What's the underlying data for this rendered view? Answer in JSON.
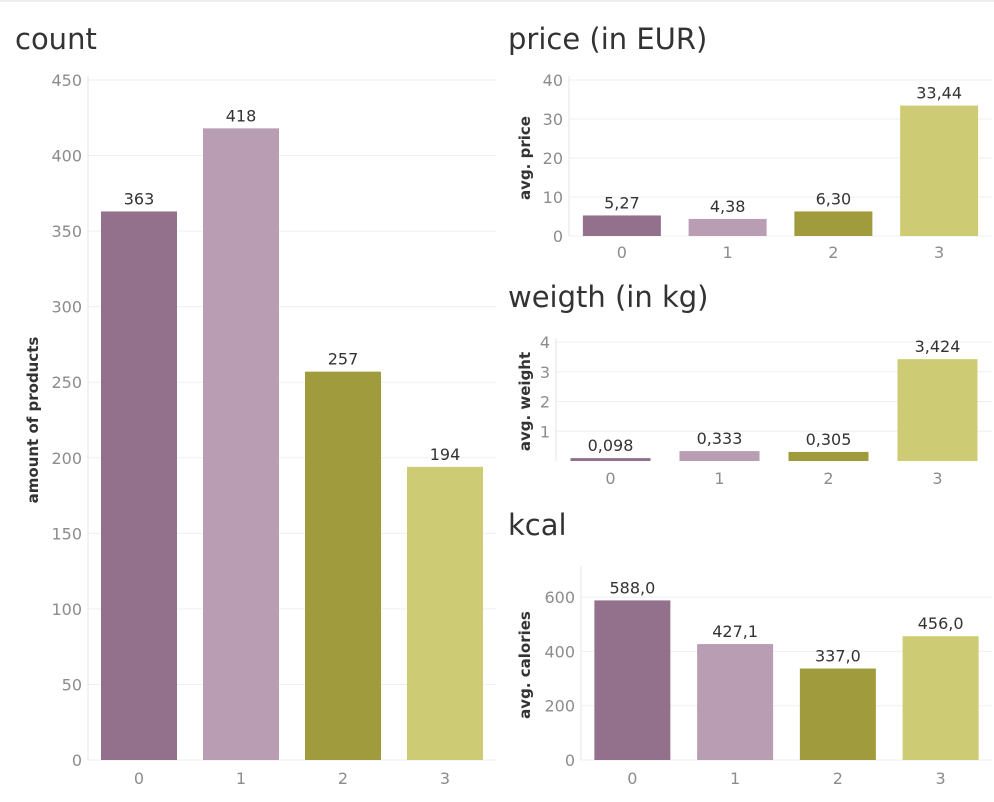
{
  "colors": [
    "#93718d",
    "#b89db3",
    "#a09b3c",
    "#cdcb74"
  ],
  "chart_data": [
    {
      "id": "count",
      "type": "bar",
      "title": "count",
      "xlabel": "",
      "ylabel": "amount of products",
      "categories": [
        "0",
        "1",
        "2",
        "3"
      ],
      "values": [
        363,
        418,
        257,
        194
      ],
      "value_labels": [
        "363",
        "418",
        "257",
        "194"
      ],
      "ylim": [
        0,
        450
      ],
      "yticks": [
        0,
        50,
        100,
        150,
        200,
        250,
        300,
        350,
        400,
        450
      ],
      "grid": true
    },
    {
      "id": "price",
      "type": "bar",
      "title": "price (in EUR)",
      "xlabel": "",
      "ylabel": "avg. price",
      "categories": [
        "0",
        "1",
        "2",
        "3"
      ],
      "values": [
        5.27,
        4.38,
        6.3,
        33.44
      ],
      "value_labels": [
        "5,27",
        "4,38",
        "6,30",
        "33,44"
      ],
      "ylim": [
        0,
        40
      ],
      "yticks": [
        0,
        10,
        20,
        30,
        40
      ],
      "grid": true
    },
    {
      "id": "weight",
      "type": "bar",
      "title": "weigth (in kg)",
      "xlabel": "",
      "ylabel": "avg. weight",
      "categories": [
        "0",
        "1",
        "2",
        "3"
      ],
      "values": [
        0.098,
        0.333,
        0.305,
        3.424
      ],
      "value_labels": [
        "0,098",
        "0,333",
        "0,305",
        "3,424"
      ],
      "ylim": [
        0,
        4
      ],
      "yticks": [
        1,
        2,
        3,
        4
      ],
      "grid": true
    },
    {
      "id": "kcal",
      "type": "bar",
      "title": "kcal",
      "xlabel": "",
      "ylabel": "avg. calories",
      "categories": [
        "0",
        "1",
        "2",
        "3"
      ],
      "values": [
        588.0,
        427.1,
        337.0,
        456.0
      ],
      "value_labels": [
        "588,0",
        "427,1",
        "337,0",
        "456,0"
      ],
      "ylim": [
        0,
        700
      ],
      "yticks": [
        0,
        200,
        400,
        600
      ],
      "grid": true
    }
  ]
}
